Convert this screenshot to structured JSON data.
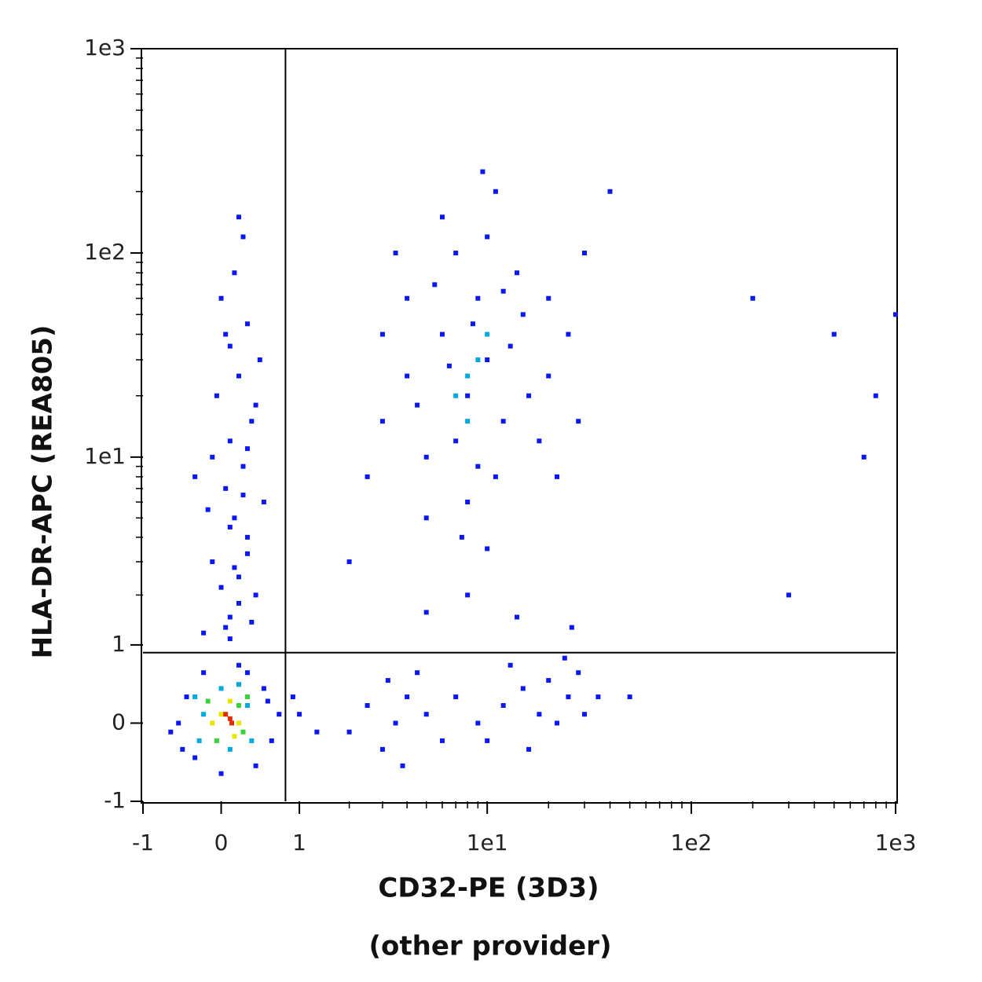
{
  "chart_data": {
    "type": "scatter",
    "scale": "asinh",
    "xlabel": "CD32-PE (3D3)",
    "xlabel_note": "(other provider)",
    "ylabel": "HLA-DR-APC (REA805)",
    "xlim": [
      -1,
      1000
    ],
    "ylim": [
      -1,
      1000
    ],
    "xticks": [
      -1,
      0,
      1,
      {
        "value": 10,
        "label": "1e1"
      },
      {
        "value": 100,
        "label": "1e2"
      },
      {
        "value": 1000,
        "label": "1e3"
      }
    ],
    "yticks": [
      -1,
      0,
      1,
      {
        "value": 10,
        "label": "1e1"
      },
      {
        "value": 100,
        "label": "1e2"
      },
      {
        "value": 1000,
        "label": "1e3"
      }
    ],
    "xminorticks": [
      2,
      3,
      4,
      5,
      6,
      7,
      8,
      9,
      20,
      30,
      40,
      50,
      60,
      70,
      80,
      90,
      200,
      300,
      400,
      500,
      600,
      700,
      800,
      900
    ],
    "yminorticks": [
      2,
      3,
      4,
      5,
      6,
      7,
      8,
      9,
      20,
      30,
      40,
      50,
      60,
      70,
      80,
      90,
      200,
      300,
      400,
      500,
      600,
      700,
      800,
      900
    ],
    "quadrant_gate": {
      "x": 0.79,
      "y": 0.88
    },
    "series": [
      {
        "color": "#0c18f0",
        "x": [
          0.1,
          0.2,
          -0.1,
          0.3,
          0.15,
          0.05,
          0.25,
          0.1,
          0.35,
          -0.05,
          0.2,
          0.1,
          0.3,
          0.0,
          0.15,
          0.25,
          -0.2,
          0.4,
          0.5,
          -0.3,
          0.45,
          0.1,
          0.2,
          0.0,
          0.3,
          0.1,
          0.25,
          -0.1,
          0.4,
          0.05,
          0.2,
          0.35,
          0.05,
          0.15,
          -0.15,
          0.3,
          -0.5,
          -0.4,
          -0.3,
          0.5,
          0.6,
          0.4,
          -0.2,
          0.2,
          0.7,
          -0.6,
          0.0,
          0.3,
          -0.45,
          0.55,
          1.0,
          1.3,
          0.9,
          5,
          8,
          10,
          6,
          12,
          4,
          9,
          7,
          15,
          20,
          3,
          5,
          11,
          14,
          6,
          25,
          8,
          4,
          18,
          10,
          3,
          7,
          13,
          9,
          5.5,
          16,
          2.5,
          30,
          11,
          6.5,
          8.5,
          12,
          4.5,
          7.5,
          20,
          3.5,
          40,
          22,
          2,
          9.5,
          28,
          10,
          2.5,
          3.5,
          4,
          3,
          5,
          4.5,
          2,
          6,
          3.2,
          7,
          9,
          12,
          15,
          18,
          20,
          22,
          25,
          28,
          30,
          16,
          13,
          35,
          10,
          24,
          3.8,
          14,
          8,
          26,
          5,
          200,
          300,
          500,
          800,
          700,
          1000,
          50
        ],
        "y": [
          1.5,
          2.5,
          3,
          4,
          5,
          7,
          9,
          12,
          15,
          20,
          25,
          35,
          45,
          60,
          80,
          120,
          1.2,
          2,
          6,
          8,
          30,
          1.1,
          1.8,
          2.2,
          3.3,
          4.5,
          6.5,
          10,
          18,
          40,
          150,
          1.4,
          1.3,
          2.8,
          5.5,
          11,
          0,
          0.3,
          -0.4,
          0.4,
          -0.2,
          -0.5,
          0.6,
          0.7,
          0.1,
          -0.1,
          -0.6,
          0.6,
          -0.3,
          0.25,
          0.1,
          -0.1,
          0.3,
          10,
          20,
          30,
          40,
          15,
          25,
          60,
          100,
          50,
          25,
          15,
          5,
          8,
          80,
          150,
          40,
          6,
          60,
          12,
          120,
          40,
          12,
          35,
          9,
          70,
          20,
          8,
          100,
          200,
          28,
          45,
          65,
          18,
          4,
          60,
          100,
          200,
          8,
          3,
          250,
          15,
          3.5,
          0.2,
          0.0,
          0.3,
          -0.3,
          0.1,
          0.6,
          -0.1,
          -0.2,
          0.5,
          0.3,
          0.0,
          0.2,
          0.4,
          0.1,
          0.5,
          0.0,
          0.3,
          0.6,
          0.1,
          -0.3,
          0.7,
          0.3,
          -0.2,
          0.8,
          -0.5,
          1.5,
          2,
          1.3,
          1.6,
          60,
          2,
          40,
          20,
          10,
          50,
          0.3
        ]
      },
      {
        "color": "#00a8e0",
        "x": [
          -0.2,
          0.3,
          0.1,
          0.0,
          0.35,
          -0.25,
          0.2,
          -0.3,
          8,
          9,
          7,
          10,
          8
        ],
        "y": [
          0.1,
          0.2,
          -0.3,
          0.4,
          -0.2,
          -0.2,
          0.45,
          0.3,
          25,
          30,
          20,
          40,
          15
        ]
      },
      {
        "color": "#3ad23a",
        "x": [
          -0.15,
          0.3,
          0.25,
          -0.05,
          0.2
        ],
        "y": [
          0.25,
          0.3,
          -0.1,
          -0.2,
          0.2
        ]
      },
      {
        "color": "#e8e400",
        "x": [
          0.0,
          0.2,
          0.1,
          0.15,
          -0.1
        ],
        "y": [
          0.1,
          0.0,
          0.25,
          -0.15,
          0.0
        ]
      },
      {
        "color": "#e02a00",
        "x": [
          0.1,
          0.05,
          0.12
        ],
        "y": [
          0.05,
          0.1,
          0.0
        ]
      }
    ]
  }
}
